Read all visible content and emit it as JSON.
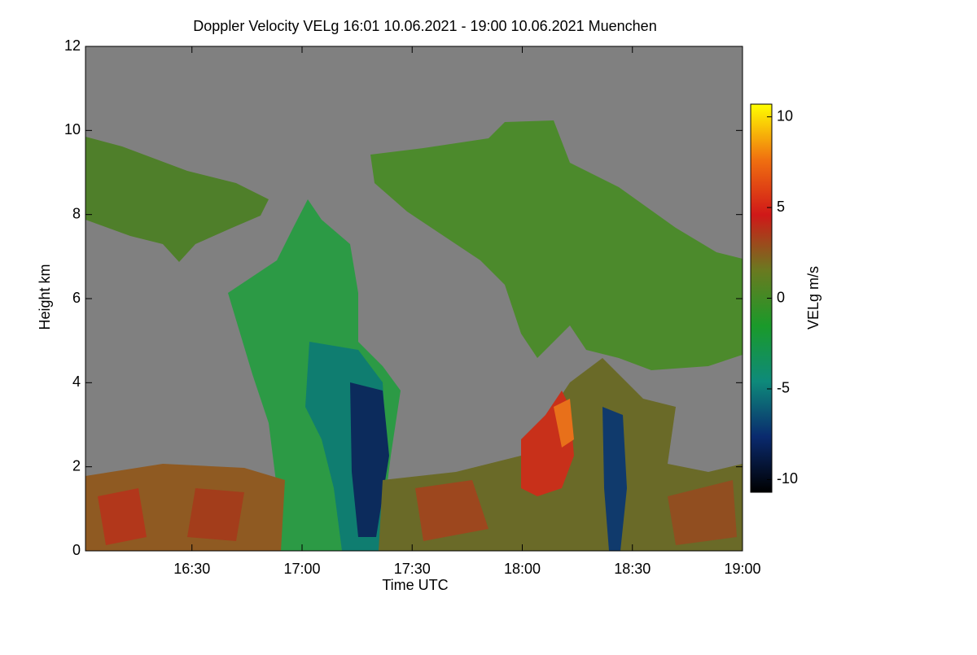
{
  "chart_data": {
    "type": "heatmap",
    "title": "Doppler Velocity VELg   16:01 10.06.2021 - 19:00 10.06.2021 Muenchen",
    "xlabel": "Time UTC",
    "ylabel": "Height km",
    "xlim": [
      16.0167,
      19.0
    ],
    "xticks": [
      {
        "value": 16.5,
        "label": "16:30"
      },
      {
        "value": 17.0,
        "label": "17:00"
      },
      {
        "value": 17.5,
        "label": "17:30"
      },
      {
        "value": 18.0,
        "label": "18:00"
      },
      {
        "value": 18.5,
        "label": "18:30"
      },
      {
        "value": 19.0,
        "label": "19:00"
      }
    ],
    "ylim": [
      0,
      12
    ],
    "yticks": [
      0,
      2,
      4,
      6,
      8,
      10,
      12
    ],
    "colorbar": {
      "label": "VELg m/s",
      "lim": [
        -10.7,
        10.7
      ],
      "ticks": [
        -10,
        -5,
        0,
        5,
        10
      ],
      "colors": [
        "#000000",
        "#0a2a6e",
        "#0e8a7a",
        "#1a9a2a",
        "#6a7a20",
        "#d01818",
        "#f07010",
        "#ffff00"
      ]
    }
  }
}
